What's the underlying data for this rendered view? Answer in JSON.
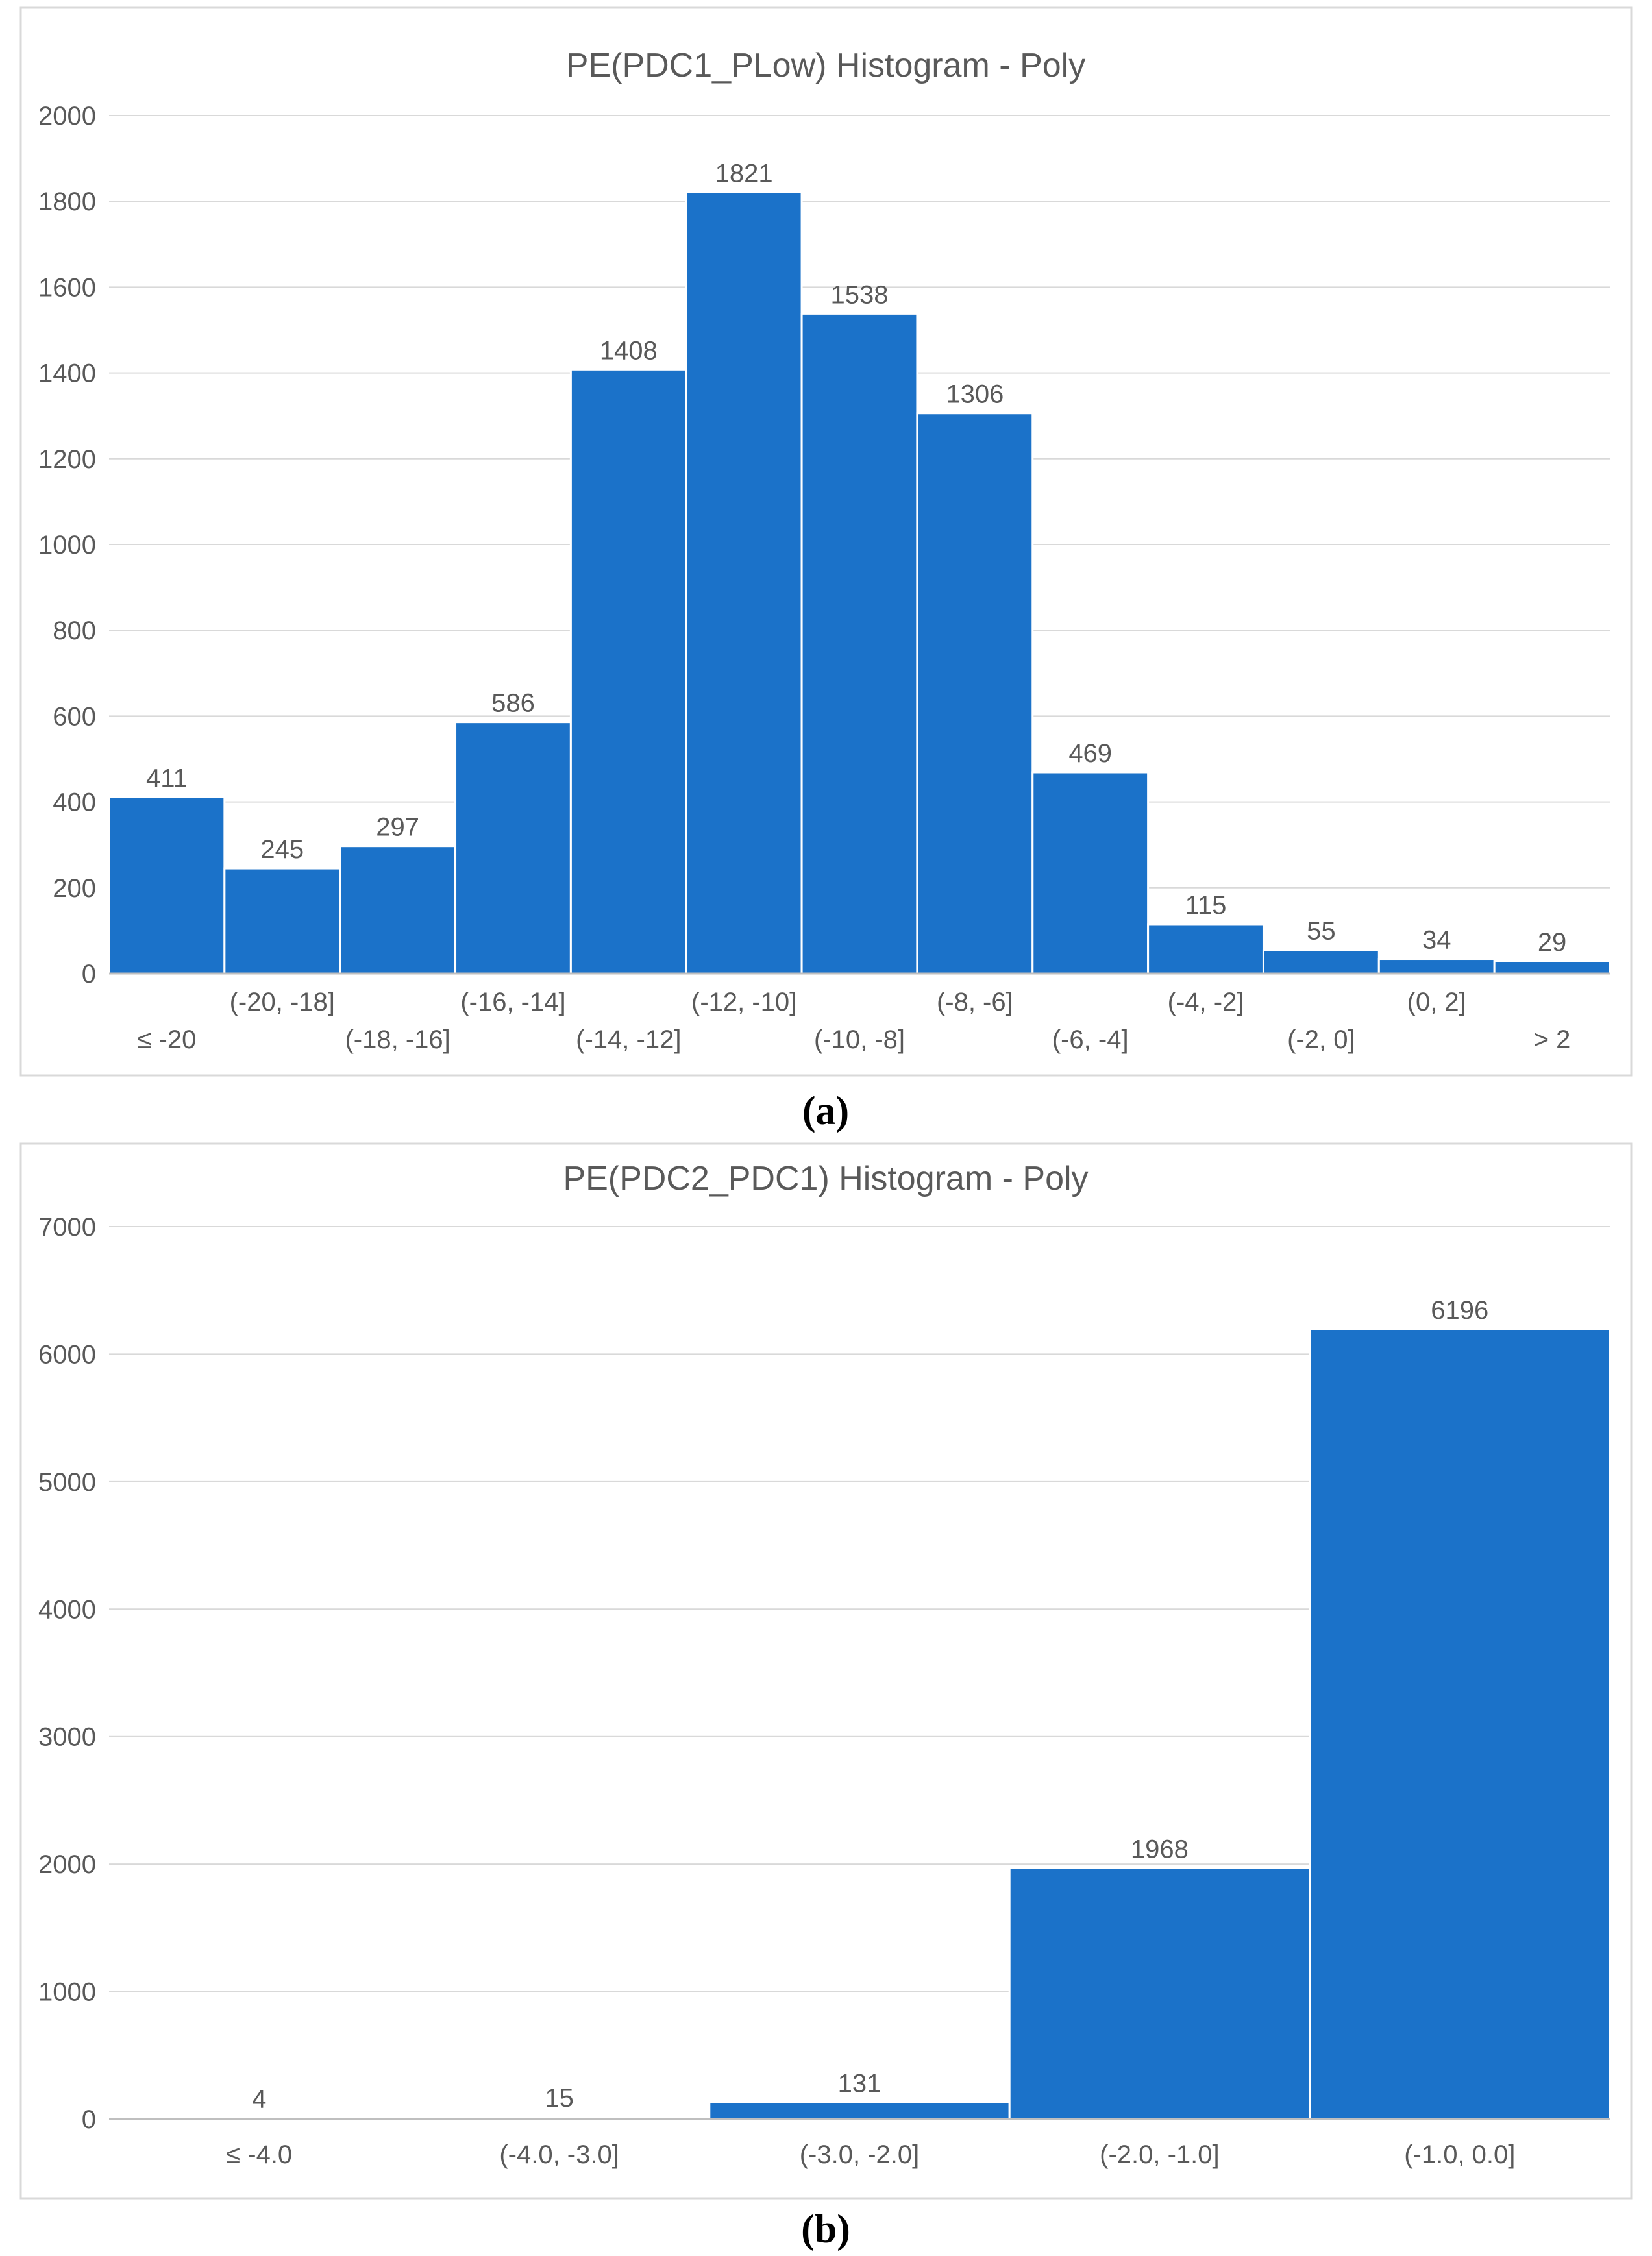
{
  "chart_data": [
    {
      "type": "bar",
      "title": "PE(PDC1_PLow) Histogram - Poly",
      "panel_label": "(a)",
      "categories": [
        "≤ -20",
        "(-20, -18]",
        "(-18, -16]",
        "(-16, -14]",
        "(-14, -12]",
        "(-12, -10]",
        "(-10, -8]",
        "(-8, -6]",
        "(-6, -4]",
        "(-4, -2]",
        "(-2, 0]",
        "(0, 2]",
        "> 2"
      ],
      "values": [
        411,
        245,
        297,
        586,
        1408,
        1821,
        1538,
        1306,
        469,
        115,
        55,
        34,
        29
      ],
      "value_labels": [
        "411",
        "245",
        "297",
        "586",
        "1408",
        "1821",
        "1538",
        "1306",
        "469",
        "115",
        "55",
        "34",
        "29"
      ],
      "yticks": [
        "0",
        "200",
        "400",
        "600",
        "800",
        "1000",
        "1200",
        "1400",
        "1600",
        "1800",
        "2000"
      ],
      "ylim": [
        0,
        2000
      ],
      "xlabel": "",
      "ylabel": "",
      "bar_color": "#1b72c9",
      "grid": true
    },
    {
      "type": "bar",
      "title": "PE(PDC2_PDC1) Histogram - Poly",
      "panel_label": "(b)",
      "categories": [
        "≤ -4.0",
        "(-4.0, -3.0]",
        "(-3.0, -2.0]",
        "(-2.0, -1.0]",
        "(-1.0, 0.0]"
      ],
      "values": [
        4,
        15,
        131,
        1968,
        6196
      ],
      "value_labels": [
        "4",
        "15",
        "131",
        "1968",
        "6196"
      ],
      "yticks": [
        "0",
        "1000",
        "2000",
        "3000",
        "4000",
        "5000",
        "6000",
        "7000"
      ],
      "ylim": [
        0,
        7000
      ],
      "xlabel": "",
      "ylabel": "",
      "bar_color": "#1b72c9",
      "grid": true
    }
  ]
}
